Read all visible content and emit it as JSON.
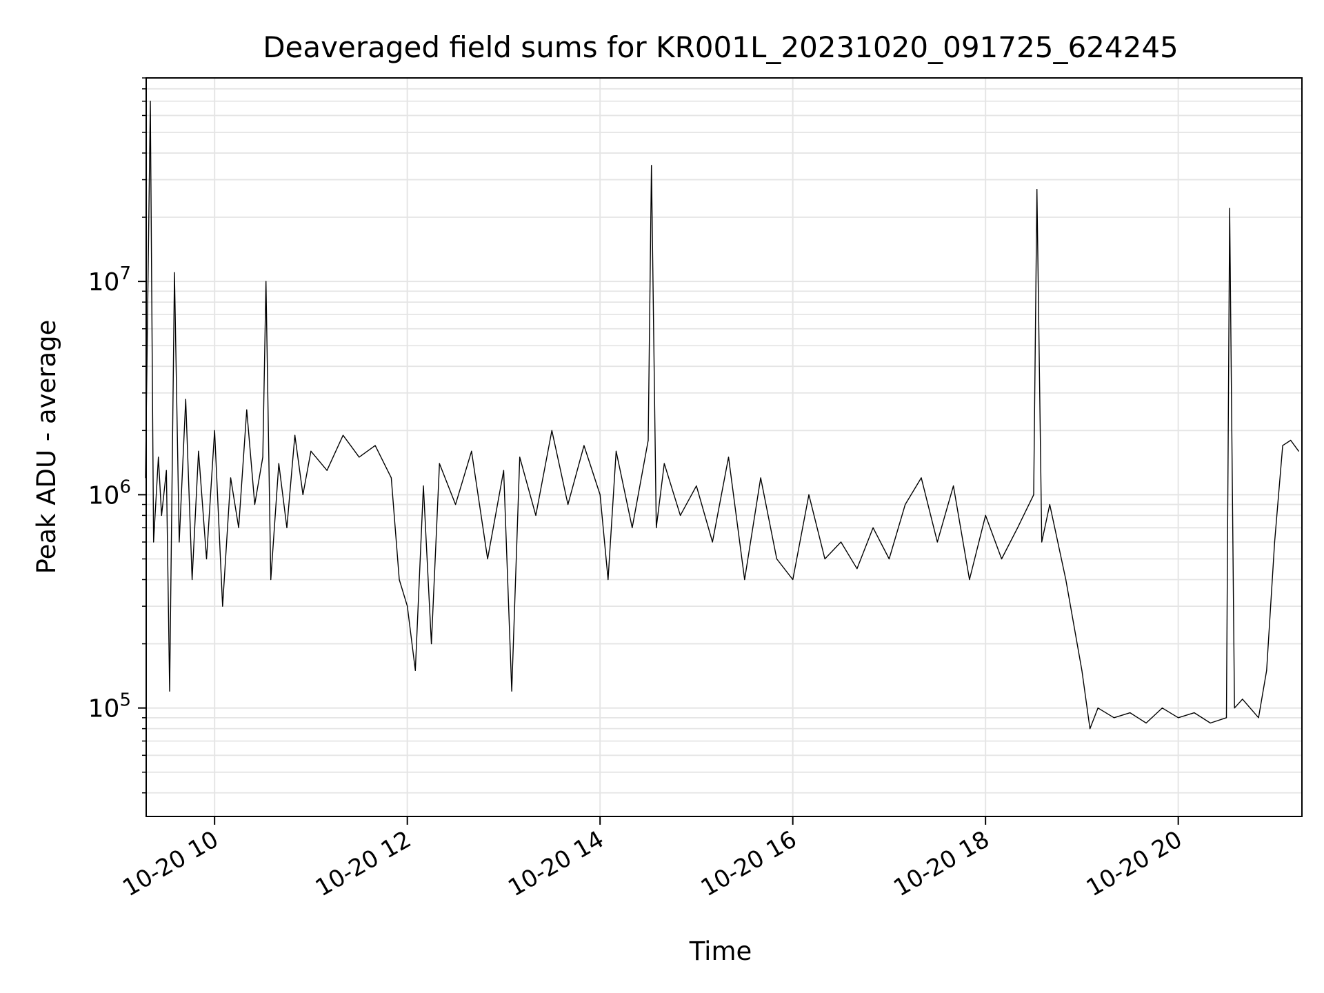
{
  "chart_data": {
    "type": "line",
    "title": "Deaveraged field sums for KR001L_20231020_091725_624245",
    "xlabel": "Time",
    "ylabel": "Peak ADU - average",
    "yscale": "log",
    "ylim": [
      31000,
      90000000
    ],
    "xlim": [
      "2023-10-20 09:17:25",
      "2023-10-20 21:17:00"
    ],
    "grid": true,
    "line_color": "#000000",
    "grid_color": "#e5e5e5",
    "x_ticks": [
      {
        "t": "2023-10-20 10:00",
        "label": "10-20 10"
      },
      {
        "t": "2023-10-20 12:00",
        "label": "10-20 12"
      },
      {
        "t": "2023-10-20 14:00",
        "label": "10-20 14"
      },
      {
        "t": "2023-10-20 16:00",
        "label": "10-20 16"
      },
      {
        "t": "2023-10-20 18:00",
        "label": "10-20 18"
      },
      {
        "t": "2023-10-20 20:00",
        "label": "10-20 20"
      }
    ],
    "y_ticks": [
      {
        "value": 100000,
        "base": "10",
        "exp": "5"
      },
      {
        "value": 1000000,
        "base": "10",
        "exp": "6"
      },
      {
        "value": 10000000,
        "base": "10",
        "exp": "7"
      }
    ],
    "series": [
      {
        "x": [
          "2023-10-20 09:17",
          "2023-10-20 09:20",
          "2023-10-20 09:22",
          "2023-10-20 09:25",
          "2023-10-20 09:27",
          "2023-10-20 09:30",
          "2023-10-20 09:32",
          "2023-10-20 09:35",
          "2023-10-20 09:38",
          "2023-10-20 09:42",
          "2023-10-20 09:46",
          "2023-10-20 09:50",
          "2023-10-20 09:55",
          "2023-10-20 10:00",
          "2023-10-20 10:05",
          "2023-10-20 10:10",
          "2023-10-20 10:15",
          "2023-10-20 10:20",
          "2023-10-20 10:25",
          "2023-10-20 10:30",
          "2023-10-20 10:32",
          "2023-10-20 10:35",
          "2023-10-20 10:40",
          "2023-10-20 10:45",
          "2023-10-20 10:50",
          "2023-10-20 10:55",
          "2023-10-20 11:00",
          "2023-10-20 11:10",
          "2023-10-20 11:20",
          "2023-10-20 11:30",
          "2023-10-20 11:40",
          "2023-10-20 11:50",
          "2023-10-20 11:55",
          "2023-10-20 12:00",
          "2023-10-20 12:05",
          "2023-10-20 12:10",
          "2023-10-20 12:15",
          "2023-10-20 12:20",
          "2023-10-20 12:30",
          "2023-10-20 12:40",
          "2023-10-20 12:50",
          "2023-10-20 13:00",
          "2023-10-20 13:05",
          "2023-10-20 13:10",
          "2023-10-20 13:20",
          "2023-10-20 13:30",
          "2023-10-20 13:40",
          "2023-10-20 13:50",
          "2023-10-20 14:00",
          "2023-10-20 14:05",
          "2023-10-20 14:10",
          "2023-10-20 14:20",
          "2023-10-20 14:30",
          "2023-10-20 14:32",
          "2023-10-20 14:35",
          "2023-10-20 14:40",
          "2023-10-20 14:50",
          "2023-10-20 15:00",
          "2023-10-20 15:10",
          "2023-10-20 15:20",
          "2023-10-20 15:30",
          "2023-10-20 15:40",
          "2023-10-20 15:50",
          "2023-10-20 16:00",
          "2023-10-20 16:10",
          "2023-10-20 16:20",
          "2023-10-20 16:30",
          "2023-10-20 16:40",
          "2023-10-20 16:50",
          "2023-10-20 17:00",
          "2023-10-20 17:10",
          "2023-10-20 17:20",
          "2023-10-20 17:30",
          "2023-10-20 17:40",
          "2023-10-20 17:50",
          "2023-10-20 18:00",
          "2023-10-20 18:10",
          "2023-10-20 18:20",
          "2023-10-20 18:30",
          "2023-10-20 18:32",
          "2023-10-20 18:35",
          "2023-10-20 18:40",
          "2023-10-20 18:50",
          "2023-10-20 19:00",
          "2023-10-20 19:05",
          "2023-10-20 19:10",
          "2023-10-20 19:20",
          "2023-10-20 19:30",
          "2023-10-20 19:40",
          "2023-10-20 19:50",
          "2023-10-20 20:00",
          "2023-10-20 20:10",
          "2023-10-20 20:20",
          "2023-10-20 20:30",
          "2023-10-20 20:32",
          "2023-10-20 20:35",
          "2023-10-20 20:40",
          "2023-10-20 20:50",
          "2023-10-20 20:55",
          "2023-10-20 21:00",
          "2023-10-20 21:05",
          "2023-10-20 21:10",
          "2023-10-20 21:15"
        ],
        "y": [
          1200000,
          70000000,
          600000,
          1500000,
          800000,
          1300000,
          120000,
          11000000,
          600000,
          2800000,
          400000,
          1600000,
          500000,
          2000000,
          300000,
          1200000,
          700000,
          2500000,
          900000,
          1500000,
          10000000,
          400000,
          1400000,
          700000,
          1900000,
          1000000,
          1600000,
          1300000,
          1900000,
          1500000,
          1700000,
          1200000,
          400000,
          300000,
          150000,
          1100000,
          200000,
          1400000,
          900000,
          1600000,
          500000,
          1300000,
          120000,
          1500000,
          800000,
          2000000,
          900000,
          1700000,
          1000000,
          400000,
          1600000,
          700000,
          1800000,
          35000000,
          700000,
          1400000,
          800000,
          1100000,
          600000,
          1500000,
          400000,
          1200000,
          500000,
          400000,
          1000000,
          500000,
          600000,
          450000,
          700000,
          500000,
          900000,
          1200000,
          600000,
          1100000,
          400000,
          800000,
          500000,
          700000,
          1000000,
          27000000,
          600000,
          900000,
          400000,
          150000,
          80000,
          100000,
          90000,
          95000,
          85000,
          100000,
          90000,
          95000,
          85000,
          90000,
          22000000,
          100000,
          110000,
          90000,
          150000,
          600000,
          1700000,
          1800000,
          1600000
        ]
      }
    ],
    "annotations": [],
    "legend": "none"
  }
}
